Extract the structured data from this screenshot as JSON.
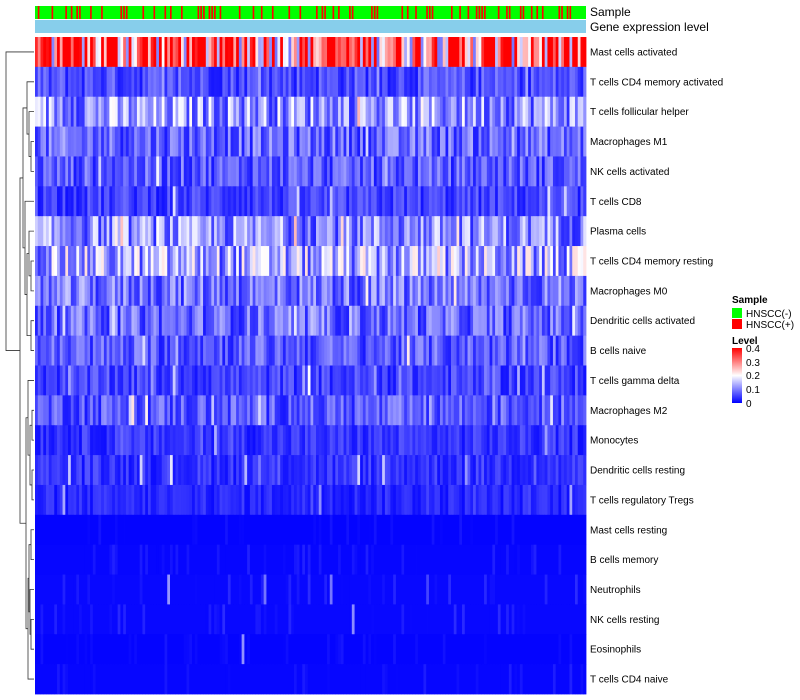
{
  "chart_data": {
    "type": "heatmap",
    "annotation_labels": [
      "Sample",
      "Gene expression level"
    ],
    "rows": [
      "Mast cells activated",
      "T cells CD4 memory activated",
      "T cells follicular helper",
      "Macrophages M1",
      "NK cells activated",
      "T cells CD8",
      "Plasma cells",
      "T cells CD4 memory resting",
      "Macrophages M0",
      "Dendritic cells activated",
      "B cells naive",
      "T cells gamma delta",
      "Macrophages M2",
      "Monocytes",
      "Dendritic cells resting",
      "T cells regulatory  Tregs",
      "Mast cells resting",
      "B cells memory",
      "Neutrophils",
      "NK cells resting",
      "Eosinophils",
      "T cells CD4 naive"
    ],
    "row_mean_levels": [
      0.33,
      0.06,
      0.12,
      0.08,
      0.07,
      0.05,
      0.11,
      0.13,
      0.09,
      0.08,
      0.07,
      0.05,
      0.07,
      0.04,
      0.04,
      0.03,
      0.01,
      0.015,
      0.02,
      0.02,
      0.01,
      0.015
    ],
    "n_samples": 200,
    "sample_legend": {
      "title": "Sample",
      "entries": [
        {
          "label": "HNSCC(-)",
          "color": "#00ff00"
        },
        {
          "label": "HNSCC(+)",
          "color": "#ff0000"
        }
      ]
    },
    "level_legend": {
      "title": "Level",
      "ticks": [
        "0.4",
        "0.3",
        "0.2",
        "0.1",
        "0"
      ],
      "min": 0,
      "max": 0.4,
      "colors": [
        "#0000ff",
        "#ffffff",
        "#ff0000"
      ]
    },
    "gene_expression_color": "#87ceeb"
  }
}
